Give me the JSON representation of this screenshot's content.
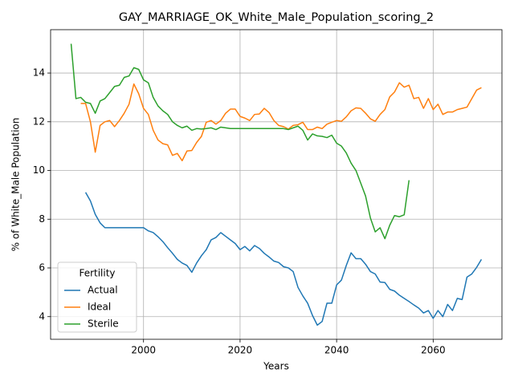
{
  "chart_data": {
    "type": "line",
    "title": "GAY_MARRIAGE_OK_White_Male_Population_scoring_2",
    "x_label": "Years",
    "y_label": "% of White_Male Population",
    "legend_title": "Fertility",
    "legend": "lower left",
    "grid": true,
    "xlim": [
      1980.75,
      2074.25
    ],
    "ylim": [
      3.07,
      15.78
    ],
    "xticks": [
      2000,
      2020,
      2040,
      2060
    ],
    "yticks": [
      4,
      6,
      8,
      10,
      12,
      14
    ],
    "x": [
      1985,
      1986,
      1987,
      1988,
      1989,
      1990,
      1991,
      1992,
      1993,
      1994,
      1995,
      1996,
      1997,
      1998,
      1999,
      2000,
      2001,
      2002,
      2003,
      2004,
      2005,
      2006,
      2007,
      2008,
      2009,
      2010,
      2011,
      2012,
      2013,
      2014,
      2015,
      2016,
      2017,
      2018,
      2019,
      2020,
      2021,
      2022,
      2023,
      2024,
      2025,
      2026,
      2027,
      2028,
      2029,
      2030,
      2031,
      2032,
      2033,
      2034,
      2035,
      2036,
      2037,
      2038,
      2039,
      2040,
      2041,
      2042,
      2043,
      2044,
      2045,
      2046,
      2047,
      2048,
      2049,
      2050,
      2051,
      2052,
      2053,
      2054,
      2055,
      2056,
      2057,
      2058,
      2059,
      2060,
      2061,
      2062,
      2063,
      2064,
      2065,
      2066,
      2067,
      2068,
      2069,
      2070
    ],
    "series": [
      {
        "name": "Actual",
        "color": "#1f77b4",
        "values": [
          null,
          null,
          null,
          9.1,
          8.75,
          8.2,
          7.85,
          7.65,
          7.65,
          7.65,
          7.65,
          7.65,
          7.65,
          7.65,
          7.65,
          7.65,
          7.52,
          7.45,
          7.28,
          7.08,
          6.83,
          6.6,
          6.35,
          6.2,
          6.1,
          5.82,
          6.2,
          6.5,
          6.75,
          7.15,
          7.25,
          7.45,
          7.3,
          7.15,
          7.0,
          6.75,
          6.88,
          6.7,
          6.92,
          6.8,
          6.6,
          6.45,
          6.28,
          6.22,
          6.05,
          6.0,
          5.85,
          5.2,
          4.85,
          4.55,
          4.05,
          3.65,
          3.8,
          4.55,
          4.55,
          5.3,
          5.5,
          6.1,
          6.62,
          6.38,
          6.38,
          6.15,
          5.85,
          5.75,
          5.42,
          5.4,
          5.12,
          5.05,
          4.88,
          4.75,
          4.62,
          4.48,
          4.35,
          4.15,
          4.25,
          3.93,
          4.25,
          4.0,
          4.5,
          4.25,
          4.75,
          4.7,
          5.62,
          5.75,
          6.02,
          6.35
        ]
      },
      {
        "name": "Ideal",
        "color": "#ff7f0e",
        "values": [
          null,
          null,
          12.75,
          12.75,
          12.0,
          10.75,
          11.85,
          12.0,
          12.05,
          11.8,
          12.05,
          12.35,
          12.72,
          13.55,
          13.15,
          12.55,
          12.3,
          11.65,
          11.25,
          11.1,
          11.05,
          10.62,
          10.7,
          10.4,
          10.8,
          10.82,
          11.15,
          11.4,
          11.98,
          12.05,
          11.9,
          12.05,
          12.35,
          12.52,
          12.52,
          12.22,
          12.15,
          12.05,
          12.3,
          12.32,
          12.55,
          12.38,
          12.05,
          11.85,
          11.8,
          11.7,
          11.85,
          11.88,
          11.98,
          11.68,
          11.68,
          11.78,
          11.72,
          11.9,
          11.98,
          12.05,
          12.02,
          12.2,
          12.45,
          12.57,
          12.55,
          12.35,
          12.12,
          12.02,
          12.3,
          12.5,
          13.02,
          13.22,
          13.6,
          13.42,
          13.5,
          12.95,
          13.0,
          12.55,
          12.95,
          12.5,
          12.72,
          12.3,
          12.4,
          12.4,
          12.5,
          12.55,
          12.6,
          12.95,
          13.3,
          13.4
        ]
      },
      {
        "name": "Sterile",
        "color": "#2ca02c",
        "values": [
          15.2,
          12.95,
          13.0,
          12.8,
          12.75,
          12.35,
          12.85,
          12.95,
          13.2,
          13.45,
          13.5,
          13.82,
          13.88,
          14.22,
          14.15,
          13.72,
          13.6,
          13.0,
          12.65,
          12.45,
          12.3,
          12.0,
          11.85,
          11.75,
          11.82,
          11.65,
          11.72,
          11.7,
          11.72,
          11.75,
          11.68,
          11.78,
          11.75,
          11.72,
          11.72,
          11.72,
          11.72,
          11.72,
          11.72,
          11.72,
          11.72,
          11.72,
          11.72,
          11.72,
          11.72,
          11.68,
          11.75,
          11.82,
          11.65,
          11.25,
          11.5,
          11.42,
          11.4,
          11.35,
          11.45,
          11.12,
          11.0,
          10.72,
          10.3,
          10.0,
          9.48,
          8.95,
          8.05,
          7.48,
          7.65,
          7.2,
          7.75,
          8.15,
          8.1,
          8.18,
          9.6,
          null,
          null,
          null,
          null,
          null,
          null,
          null,
          null,
          null,
          null,
          null,
          null,
          null,
          null,
          null
        ]
      }
    ]
  }
}
